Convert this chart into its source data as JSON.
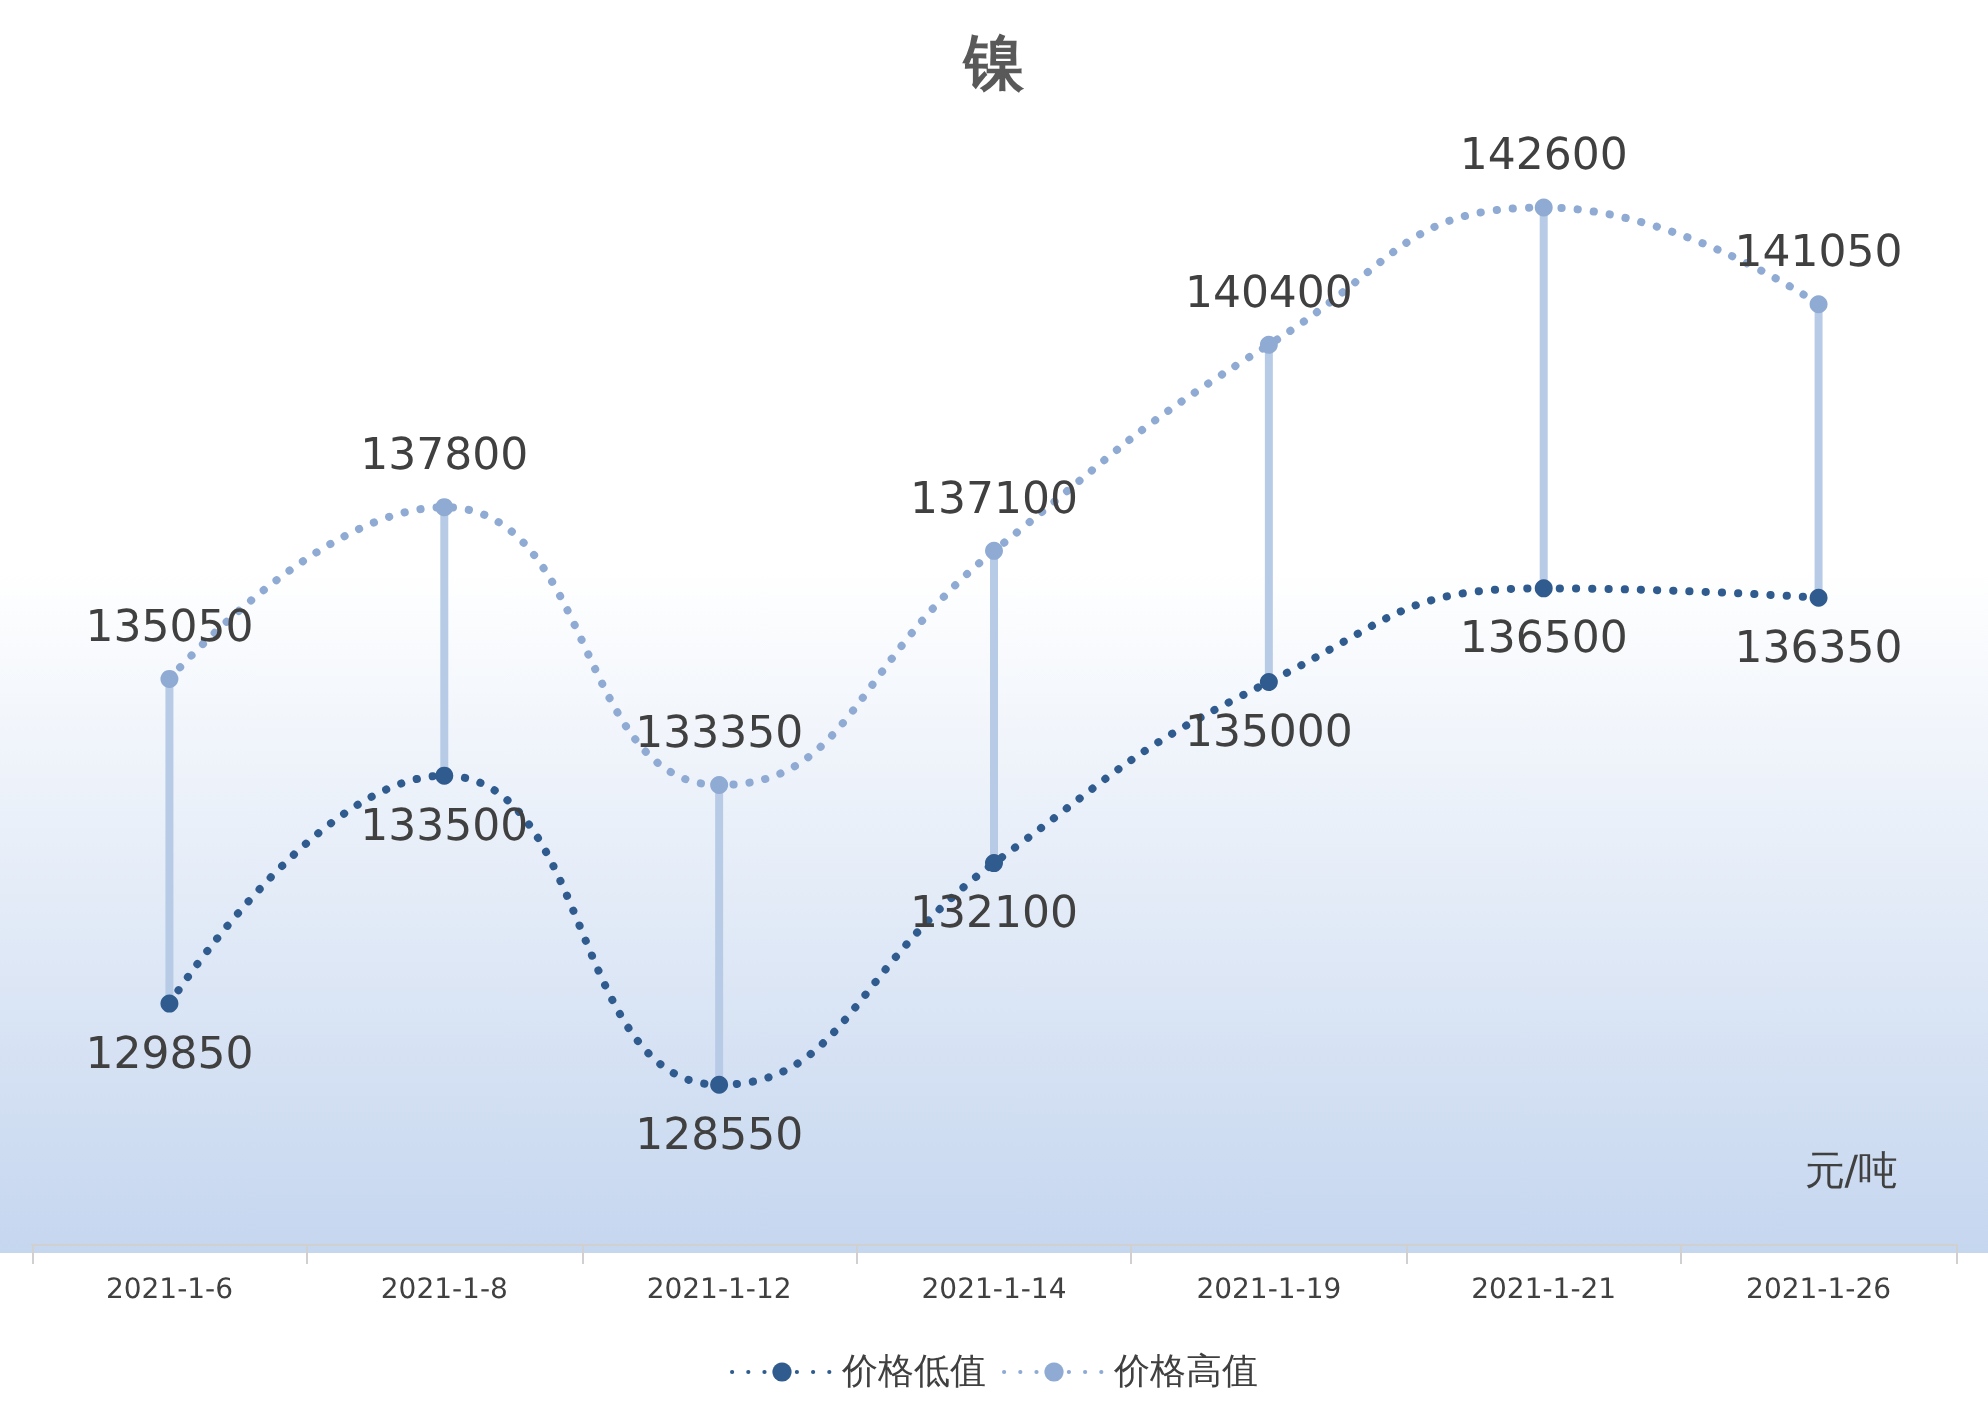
{
  "chart_data": {
    "type": "line",
    "title": "镍",
    "annotations": [
      "元/吨"
    ],
    "categories": [
      "2021-1-6",
      "2021-1-8",
      "2021-1-12",
      "2021-1-14",
      "2021-1-19",
      "2021-1-21",
      "2021-1-26"
    ],
    "series": [
      {
        "name": "价格低值",
        "color": "#2f5b8e",
        "values": [
          129850,
          133500,
          128550,
          132100,
          135000,
          136500,
          136350
        ]
      },
      {
        "name": "价格高值",
        "color": "#8faad3",
        "values": [
          135050,
          137800,
          133350,
          137100,
          140400,
          142600,
          141050
        ]
      }
    ],
    "data_labels": true,
    "marker": "circle",
    "line_style": "dotted",
    "legend": "bottom",
    "grid": false
  }
}
